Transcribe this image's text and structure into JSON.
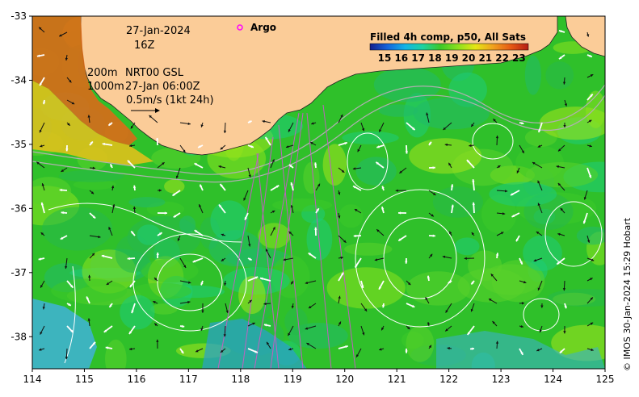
{
  "map": {
    "lon_range": [
      114,
      125
    ],
    "lat_range": [
      -38.5,
      -33
    ],
    "x_ticks": [
      "114",
      "115",
      "116",
      "117",
      "118",
      "119",
      "120",
      "121",
      "122",
      "123",
      "124",
      "125"
    ],
    "y_ticks": [
      "-33",
      "-34",
      "-35",
      "-36",
      "-37",
      "-38"
    ],
    "x_tick_values": [
      114,
      115,
      116,
      117,
      118,
      119,
      120,
      121,
      122,
      123,
      124,
      125
    ],
    "y_tick_values": [
      -33,
      -34,
      -35,
      -36,
      -37,
      -38
    ]
  },
  "annotations": {
    "date": "27-Jan-2024",
    "hour": "16Z",
    "argo_label": "Argo",
    "depth_200": "200m",
    "depth_1000": "1000m",
    "source": "NRT00 GSL",
    "source_time": "27-Jan 06:00Z",
    "speed_scale": "0.5m/s (1kt 24h)"
  },
  "colorbar": {
    "title": "Filled 4h comp, p50, All Sats",
    "labels": [
      "15",
      "16",
      "17",
      "18",
      "19",
      "20",
      "21",
      "22",
      "23"
    ],
    "colors": [
      "#141e8c",
      "#1464dc",
      "#14b4e6",
      "#1ed2a0",
      "#3cc828",
      "#8ce11e",
      "#e6e614",
      "#f0a01e",
      "#e65a14",
      "#b41e14"
    ]
  },
  "credit": "© IMOS 30-Jan-2024 15:29 Hobart",
  "colors": {
    "land": "#fbcc98",
    "warm_sst": "#d96a18",
    "cool_sst": "#3fb1d8",
    "argo_marker": "#ff00ff",
    "track": "#c060c0",
    "contour": "#ffffff"
  }
}
